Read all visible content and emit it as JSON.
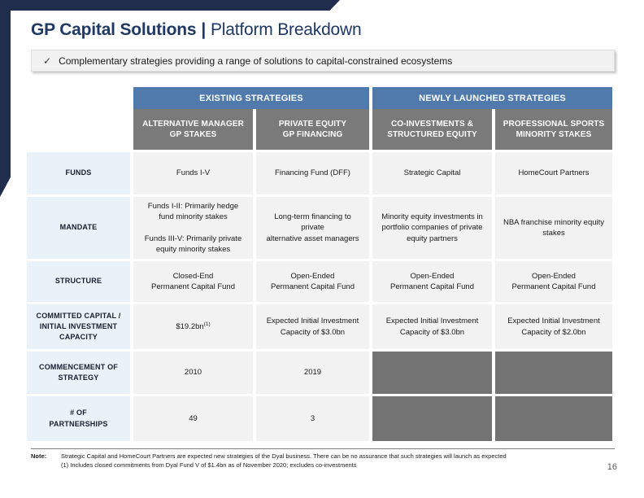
{
  "slide": {
    "title": {
      "bold": "GP Capital Solutions",
      "separator": "|",
      "regular": "Platform Breakdown"
    },
    "page_number": "16"
  },
  "banner": {
    "check_icon": "✓",
    "text": "Complementary strategies providing a range of solutions to capital-constrained ecosystems"
  },
  "table": {
    "group_headers": [
      "EXISTING STRATEGIES",
      "NEWLY LAUNCHED STRATEGIES"
    ],
    "column_headers": [
      "ALTERNATIVE MANAGER\nGP STAKES",
      "PRIVATE EQUITY\nGP FINANCING",
      "CO-INVESTMENTS &\nSTRUCTURED EQUITY",
      "PROFESSIONAL SPORTS\nMINORITY STAKES"
    ],
    "row_labels": [
      "FUNDS",
      "MANDATE",
      "STRUCTURE",
      "COMMITTED CAPITAL /\nINITIAL INVESTMENT\nCAPACITY",
      "COMMENCEMENT OF\nSTRATEGY",
      "# OF\nPARTNERSHIPS"
    ],
    "funds": [
      "Funds I-V",
      "Financing Fund (DFF)",
      "Strategic Capital",
      "HomeCourt Partners"
    ],
    "mandate": [
      "Funds I-II: Primarily hedge\nfund minority stakes\n\nFunds III-V: Primarily private\nequity minority stakes",
      "Long-term financing to private\nalternative asset managers",
      "Minority equity investments in\nportfolio companies of private\nequity partners",
      "NBA franchise minority equity\nstakes"
    ],
    "structure": [
      "Closed-End\nPermanent Capital Fund",
      "Open-Ended\nPermanent Capital Fund",
      "Open-Ended\nPermanent Capital Fund",
      "Open-Ended\nPermanent Capital Fund"
    ],
    "committed": {
      "c1_value": "$19.2bn",
      "c1_sup": "(1)",
      "c2": "Expected Initial Investment\nCapacity of $3.0bn",
      "c3": "Expected Initial Investment\nCapacity of $3.0bn",
      "c4": "Expected Initial Investment\nCapacity of $2.0bn"
    },
    "commencement": [
      "2010",
      "2019"
    ],
    "partnerships": [
      "49",
      "3"
    ]
  },
  "footnote": {
    "label": "Note:",
    "line1": "Strategic Capital and HomeCourt Partners are expected new strategies of the Dyal business. There can be no assurance that such strategies will launch as expected",
    "line2": "(1) Includes closed commitments from Dyal Fund V of $1.4bn as of November 2020; excludes co-investments"
  },
  "colors": {
    "accent_navy": "#212D4D",
    "title_navy": "#1F3864",
    "group_header_blue": "#4F7AAB",
    "column_header_gray": "#7A7A7A",
    "row_label_blue": "#E9F1F9",
    "cell_gray": "#F2F2F2",
    "filled_cell_gray": "#737373"
  }
}
